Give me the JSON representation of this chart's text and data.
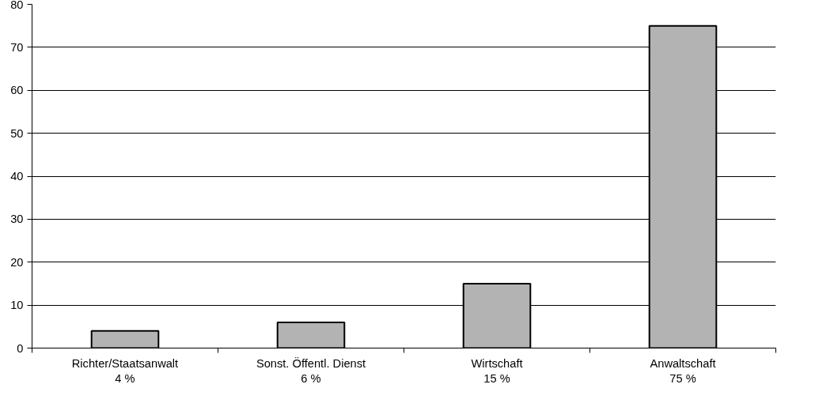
{
  "chart_data": {
    "type": "bar",
    "categories": [
      "Richter/Staatsanwalt\n4 %",
      "Sonst. Öffentl. Dienst\n6 %",
      "Wirtschaft\n15 %",
      "Anwaltschaft\n75 %"
    ],
    "values": [
      4,
      6,
      15,
      75
    ],
    "color": "#b3b3b3",
    "ylim": [
      0,
      80
    ],
    "yticks": [
      0,
      10,
      20,
      30,
      40,
      50,
      60,
      70,
      80
    ],
    "grid": "y"
  }
}
